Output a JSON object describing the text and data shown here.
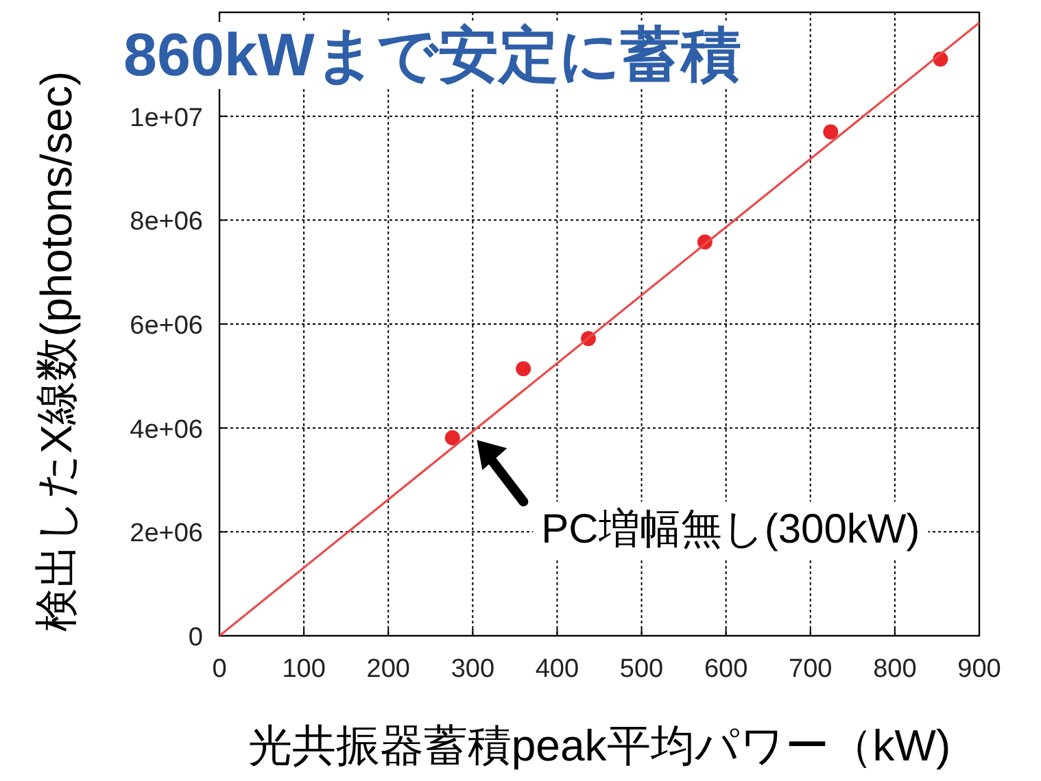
{
  "chart_data": {
    "type": "scatter",
    "title": "860kWまで安定に蓄積",
    "xlabel": "光共振器蓄積peak平均パワー（kW)",
    "ylabel": "検出したX線数(photons/sec)",
    "xlim": [
      0,
      900
    ],
    "xticks": [
      0,
      100,
      200,
      300,
      400,
      500,
      600,
      700,
      800,
      900
    ],
    "ylim": [
      0,
      12000000
    ],
    "yticks": [
      0,
      {
        "value": 2000000,
        "label": "2e+06"
      },
      {
        "value": 4000000,
        "label": "4e+06"
      },
      {
        "value": 6000000,
        "label": "6e+06"
      },
      {
        "value": 8000000,
        "label": "8e+06"
      },
      {
        "value": 10000000,
        "label": "1e+07"
      }
    ],
    "grid": true,
    "series": [
      {
        "type": "scatter",
        "marker": "circle",
        "color": "#e8262a",
        "x": [
          276,
          360,
          437,
          575,
          724,
          854
        ],
        "values": [
          3810000,
          5140000,
          5720000,
          7580000,
          9700000,
          11100000
        ]
      },
      {
        "type": "line",
        "color": "#ec4a4a",
        "x": [
          0,
          900
        ],
        "values": [
          0,
          11800000
        ]
      }
    ],
    "annotations": [
      {
        "text": "PC増幅無し(300kW)",
        "x": 300,
        "y": 3900000
      }
    ]
  }
}
